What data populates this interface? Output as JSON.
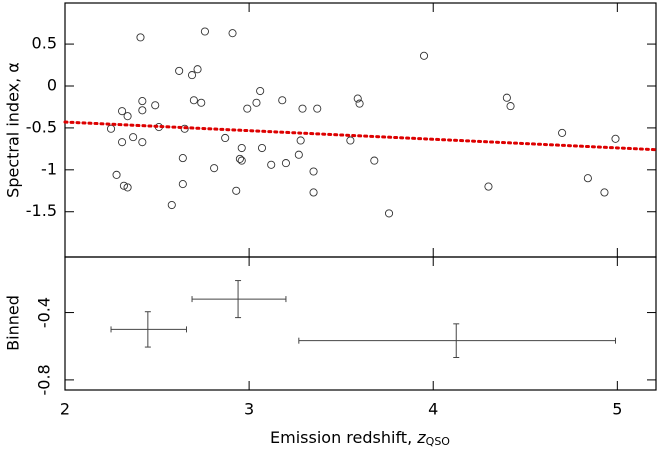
{
  "chart_data": [
    {
      "type": "scatter",
      "ylabel": "Spectral index, α",
      "xlim": [
        2,
        5.21
      ],
      "ylim": [
        -2.04,
        0.99
      ],
      "yticks": [
        0.5,
        0,
        -0.5,
        -1,
        -1.5
      ],
      "xticks": [
        2,
        3,
        4,
        5
      ],
      "color": "#333333",
      "x": [
        2.25,
        2.28,
        2.31,
        2.31,
        2.32,
        2.34,
        2.34,
        2.37,
        2.41,
        2.42,
        2.42,
        2.42,
        2.49,
        2.51,
        2.58,
        2.62,
        2.64,
        2.64,
        2.65,
        2.69,
        2.7,
        2.72,
        2.74,
        2.76,
        2.81,
        2.87,
        2.91,
        2.93,
        2.95,
        2.96,
        2.96,
        2.99,
        3.04,
        3.06,
        3.07,
        3.12,
        3.18,
        3.2,
        3.27,
        3.28,
        3.29,
        3.35,
        3.35,
        3.37,
        3.55,
        3.59,
        3.6,
        3.68,
        3.76,
        3.95,
        4.3,
        4.4,
        4.42,
        4.7,
        4.84,
        4.93,
        4.99
      ],
      "values": [
        -0.51,
        -1.06,
        -0.3,
        -0.67,
        -1.19,
        -0.36,
        -1.21,
        -0.61,
        0.58,
        -0.18,
        -0.29,
        -0.67,
        -0.23,
        -0.49,
        -1.42,
        0.18,
        -0.86,
        -1.17,
        -0.51,
        0.13,
        -0.17,
        0.2,
        -0.2,
        0.65,
        -0.98,
        -0.62,
        0.63,
        -1.25,
        -0.87,
        -0.89,
        -0.74,
        -0.27,
        -0.2,
        -0.06,
        -0.74,
        -0.94,
        -0.17,
        -0.92,
        -0.82,
        -0.65,
        -0.27,
        -1.02,
        -1.27,
        -0.27,
        -0.65,
        -0.15,
        -0.21,
        -0.89,
        -1.52,
        0.36,
        -1.2,
        -0.14,
        -0.24,
        -0.56,
        -1.1,
        -1.27,
        -0.63
      ],
      "fit": {
        "x": [
          2,
          5.21
        ],
        "values": [
          -0.43,
          -0.76
        ],
        "color": "#dd0000"
      }
    },
    {
      "type": "errorbar",
      "ylabel": "Binned",
      "xlabel": "Emission redshift, ",
      "xlabel_italic": "z",
      "xlabel_sub": "QSO",
      "xlim": [
        2,
        5.21
      ],
      "ylim": [
        -0.86,
        -0.07
      ],
      "xticks": [
        2,
        3,
        4,
        5
      ],
      "yticks": [
        -0.4,
        -0.8
      ],
      "color": "#444444",
      "x": [
        2.45,
        2.94,
        4.125
      ],
      "x_lower": [
        2.25,
        2.69,
        3.27
      ],
      "x_upper": [
        2.66,
        3.2,
        4.99
      ],
      "values": [
        -0.5,
        -0.32,
        -0.567
      ],
      "errors": [
        0.105,
        0.11,
        0.1
      ]
    }
  ]
}
